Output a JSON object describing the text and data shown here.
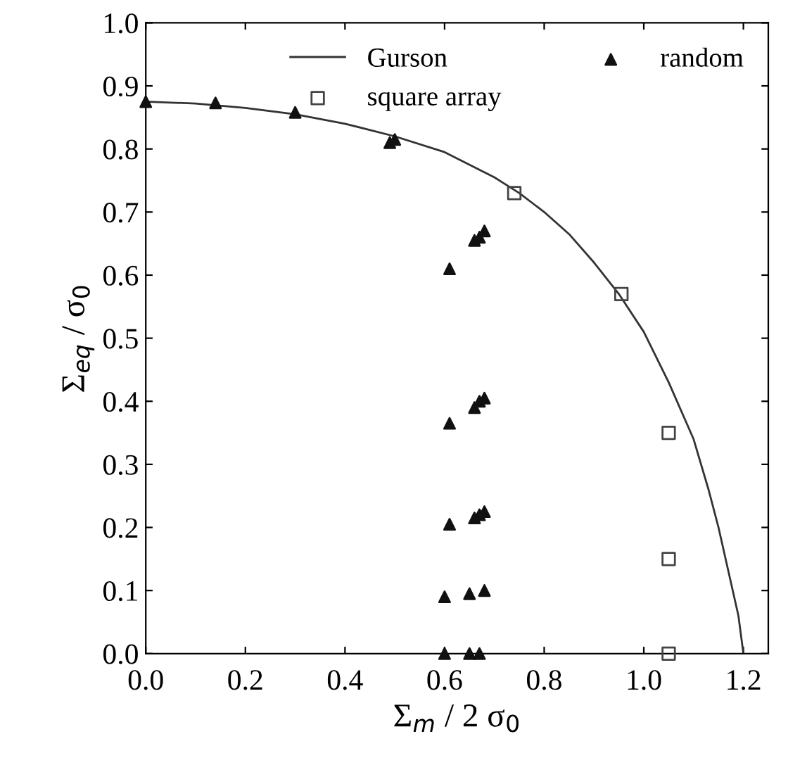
{
  "chart_data": {
    "type": "scatter",
    "xlabel": "Σ$_{m}$ / 2 σ$_{0}$",
    "ylabel": "Σ$_{eq}$ / σ$_{0}$",
    "xlim": [
      0,
      1.25
    ],
    "ylim": [
      0,
      1.0
    ],
    "xticks": [
      {
        "value": 0,
        "label": "0.0"
      },
      0.2,
      0.4,
      0.6,
      0.8,
      {
        "value": 1,
        "label": "1.0"
      },
      1.2
    ],
    "yticks": [
      {
        "value": 0,
        "label": "0.0"
      },
      0.1,
      0.2,
      0.3,
      0.4,
      0.5,
      0.6,
      0.7,
      0.8,
      0.9,
      {
        "value": 1,
        "label": "1.0"
      }
    ],
    "grid": false,
    "legend": "top right",
    "series": [
      {
        "name": "Gurson",
        "type": "line",
        "color": "#333333",
        "marker": "none",
        "line_style": "solid",
        "x": [
          0,
          0.1,
          0.2,
          0.3,
          0.4,
          0.5,
          0.6,
          0.7,
          0.75,
          0.8,
          0.85,
          0.9,
          0.95,
          1.0,
          1.05,
          1.1,
          1.13,
          1.15,
          1.17,
          1.19,
          1.2
        ],
        "values": [
          0.875,
          0.872,
          0.865,
          0.855,
          0.84,
          0.82,
          0.795,
          0.755,
          0.73,
          0.7,
          0.665,
          0.62,
          0.57,
          0.51,
          0.43,
          0.34,
          0.26,
          0.2,
          0.13,
          0.06,
          0.0
        ]
      },
      {
        "name": "square array",
        "color": "#444444",
        "marker": "square",
        "x": [
          0.74,
          0.955,
          1.05,
          1.05,
          1.05
        ],
        "values": [
          0.73,
          0.57,
          0.35,
          0.15,
          0.0
        ]
      },
      {
        "name": "random",
        "color": "#111111",
        "marker": "triangle",
        "x": [
          0.0,
          0.14,
          0.3,
          0.49,
          0.5,
          0.61,
          0.66,
          0.67,
          0.68,
          0.61,
          0.66,
          0.67,
          0.68,
          0.61,
          0.66,
          0.67,
          0.68,
          0.6,
          0.65,
          0.68,
          0.6,
          0.65,
          0.67
        ],
        "values": [
          0.875,
          0.873,
          0.858,
          0.81,
          0.815,
          0.61,
          0.655,
          0.66,
          0.67,
          0.365,
          0.39,
          0.4,
          0.405,
          0.205,
          0.215,
          0.22,
          0.225,
          0.09,
          0.095,
          0.1,
          0.0,
          0.0,
          0.0
        ]
      }
    ]
  }
}
